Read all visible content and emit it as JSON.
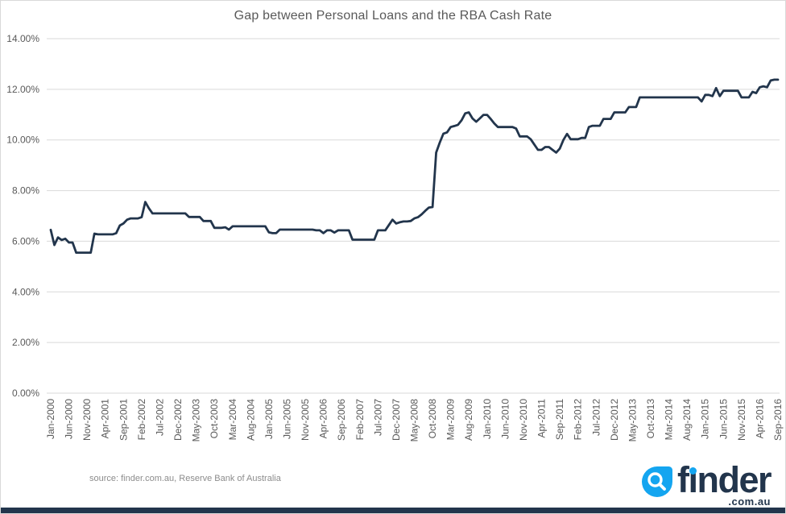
{
  "title": "Gap between Personal Loans and the RBA Cash Rate",
  "source_note": "source: finder.com.au, Reserve Bank of Australia",
  "logo": {
    "brand": "finder",
    "tld": ".com.au",
    "icon": "magnifier-droplet-icon"
  },
  "colors": {
    "line": "#22354c",
    "grid": "#d9d9d9",
    "title_text": "#595959",
    "axis_text": "#595959",
    "source_text": "#8c8c8c",
    "logo_blue": "#14a5f0",
    "logo_navy": "#22354c",
    "bottom_bar": "#22354c"
  },
  "chart_data": {
    "type": "line",
    "title": "Gap between Personal Loans and the RBA Cash Rate",
    "x_start": "Jan-2000",
    "x_end": "Sep-2016",
    "x_frequency": "monthly",
    "x_tick_every_n_months": 5,
    "x_tick_labels": [
      "Jan-2000",
      "Jun-2000",
      "Nov-2000",
      "Apr-2001",
      "Sep-2001",
      "Feb-2002",
      "Jul-2002",
      "Dec-2002",
      "May-2003",
      "Oct-2003",
      "Mar-2004",
      "Aug-2004",
      "Jan-2005",
      "Jun-2005",
      "Nov-2005",
      "Apr-2006",
      "Sep-2006",
      "Feb-2007",
      "Jul-2007",
      "Dec-2007",
      "May-2008",
      "Oct-2008",
      "Mar-2009",
      "Aug-2009",
      "Jan-2010",
      "Jun-2010",
      "Nov-2010",
      "Apr-2011",
      "Sep-2011",
      "Feb-2012",
      "Jul-2012",
      "Dec-2012",
      "May-2013",
      "Oct-2013",
      "Mar-2014",
      "Aug-2014",
      "Jan-2015",
      "Jun-2015",
      "Nov-2015",
      "Apr-2016",
      "Sep-2016"
    ],
    "y_tick_labels": [
      "0.00%",
      "2.00%",
      "4.00%",
      "6.00%",
      "8.00%",
      "10.00%",
      "12.00%",
      "14.00%"
    ],
    "ylim": [
      0,
      14
    ],
    "grid": "horizontal",
    "legend": "none",
    "series": [
      {
        "name": "Gap",
        "values": [
          6.45,
          5.85,
          6.15,
          6.05,
          6.1,
          5.95,
          5.95,
          5.55,
          5.55,
          5.55,
          5.55,
          5.55,
          6.3,
          6.27,
          6.27,
          6.27,
          6.27,
          6.27,
          6.32,
          6.62,
          6.7,
          6.85,
          6.9,
          6.9,
          6.9,
          6.95,
          7.55,
          7.3,
          7.1,
          7.1,
          7.1,
          7.1,
          7.1,
          7.1,
          7.1,
          7.1,
          7.1,
          7.1,
          6.96,
          6.96,
          6.96,
          6.96,
          6.8,
          6.8,
          6.8,
          6.53,
          6.53,
          6.53,
          6.55,
          6.46,
          6.59,
          6.59,
          6.59,
          6.59,
          6.59,
          6.59,
          6.59,
          6.59,
          6.59,
          6.59,
          6.35,
          6.32,
          6.32,
          6.46,
          6.46,
          6.46,
          6.46,
          6.46,
          6.46,
          6.46,
          6.46,
          6.46,
          6.46,
          6.43,
          6.43,
          6.32,
          6.43,
          6.43,
          6.34,
          6.43,
          6.43,
          6.43,
          6.43,
          6.06,
          6.06,
          6.06,
          6.06,
          6.06,
          6.06,
          6.06,
          6.43,
          6.43,
          6.43,
          6.64,
          6.85,
          6.7,
          6.75,
          6.78,
          6.78,
          6.8,
          6.9,
          6.95,
          7.06,
          7.2,
          7.33,
          7.35,
          9.5,
          9.9,
          10.25,
          10.3,
          10.51,
          10.55,
          10.6,
          10.78,
          11.05,
          11.09,
          10.85,
          10.72,
          10.85,
          10.99,
          10.99,
          10.83,
          10.65,
          10.51,
          10.51,
          10.51,
          10.51,
          10.51,
          10.45,
          10.14,
          10.14,
          10.14,
          10.03,
          9.82,
          9.61,
          9.61,
          9.72,
          9.72,
          9.61,
          9.5,
          9.66,
          10.0,
          10.24,
          10.03,
          10.03,
          10.03,
          10.08,
          10.08,
          10.51,
          10.56,
          10.56,
          10.56,
          10.83,
          10.83,
          10.83,
          11.09,
          11.09,
          11.09,
          11.09,
          11.3,
          11.3,
          11.3,
          11.68,
          11.68,
          11.68,
          11.68,
          11.68,
          11.68,
          11.68,
          11.68,
          11.68,
          11.68,
          11.68,
          11.68,
          11.68,
          11.68,
          11.68,
          11.68,
          11.68,
          11.52,
          11.78,
          11.78,
          11.73,
          12.05,
          11.73,
          11.94,
          11.94,
          11.94,
          11.94,
          11.94,
          11.68,
          11.68,
          11.68,
          11.9,
          11.85,
          12.08,
          12.12,
          12.08,
          12.35,
          12.38,
          12.38
        ]
      }
    ]
  }
}
